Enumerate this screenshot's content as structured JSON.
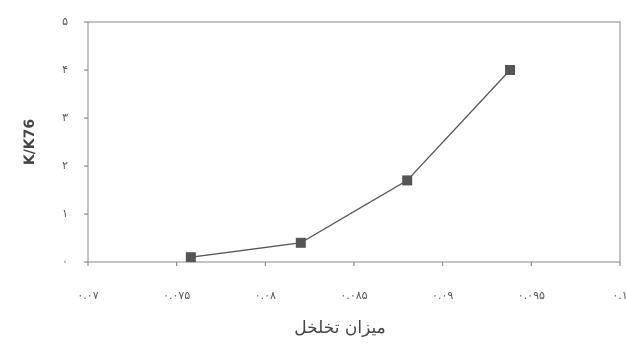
{
  "chart_data": {
    "type": "line",
    "x_label": "میزان تخلخل",
    "y_label": "K/K76",
    "series": [
      {
        "name": "K/K76",
        "color": "#555555",
        "values": [
          0.1,
          0.4,
          1.7,
          4.0
        ],
        "x": [
          0.0758,
          0.082,
          0.088,
          0.0938
        ]
      }
    ],
    "xlim": [
      0.07,
      0.1
    ],
    "xticks": [
      {
        "value": 0.07,
        "label": "۰.۰۷"
      },
      {
        "value": 0.075,
        "label": "۰.۰۷۵"
      },
      {
        "value": 0.08,
        "label": "۰.۰۸"
      },
      {
        "value": 0.085,
        "label": "۰.۰۸۵"
      },
      {
        "value": 0.09,
        "label": "۰.۰۹"
      },
      {
        "value": 0.095,
        "label": "۰.۰۹۵"
      },
      {
        "value": 0.1,
        "label": "۰.۱"
      }
    ],
    "ylim": [
      0,
      5
    ],
    "yticks": [
      {
        "value": 0,
        "label": "۰"
      },
      {
        "value": 1,
        "label": "۱"
      },
      {
        "value": 2,
        "label": "۲"
      },
      {
        "value": 3,
        "label": "۳"
      },
      {
        "value": 4,
        "label": "۴"
      },
      {
        "value": 5,
        "label": "۵"
      }
    ],
    "grid": false
  }
}
